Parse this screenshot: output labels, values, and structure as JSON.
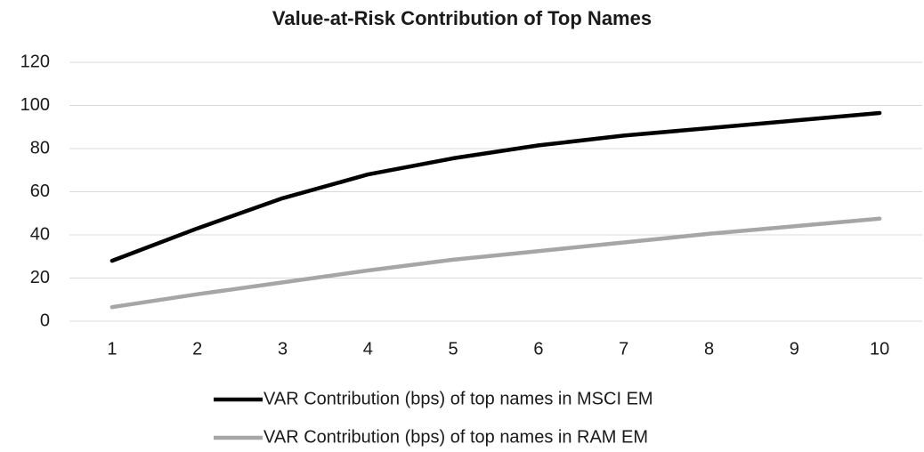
{
  "chart_data": {
    "type": "line",
    "title": "Value-at-Risk Contribution of Top Names",
    "categories": [
      "1",
      "2",
      "3",
      "4",
      "5",
      "6",
      "7",
      "8",
      "9",
      "10"
    ],
    "series": [
      {
        "name": "VAR Contribution (bps) of top names in MSCI EM",
        "color": "#000000",
        "values": [
          28,
          43,
          57,
          68,
          75.5,
          81.5,
          86,
          89.5,
          93,
          96.5
        ]
      },
      {
        "name": "VAR Contribution (bps) of top names in RAM EM",
        "color": "#a6a6a6",
        "values": [
          6.5,
          12.5,
          18,
          23.5,
          28.5,
          32.5,
          36.5,
          40.5,
          44,
          47.5
        ]
      }
    ],
    "ylim": [
      0,
      120
    ],
    "yticks": [
      0,
      20,
      40,
      60,
      80,
      100,
      120
    ],
    "grid": true,
    "legend": "bottom"
  }
}
